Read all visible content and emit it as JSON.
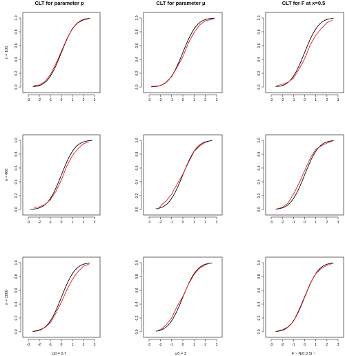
{
  "column_titles": [
    "CLT for parameter p",
    "CLT for parameter μ",
    "CLT for F at x=0.5"
  ],
  "row_labels": [
    "n = 100",
    "n = 400",
    "n = 1000"
  ],
  "bottom_labels": [
    "p0 = 0.7",
    "μ0 = 3",
    "F ~ N(0.0.5) ~"
  ],
  "colors": {
    "reference_cdf": "#000000",
    "empirical_cdf": "#e41a1c"
  },
  "chart_data": {
    "type": "line",
    "layout": "3x3 grid",
    "grid": false,
    "xticks": [
      -3,
      -2,
      -1,
      0,
      1,
      2,
      3
    ],
    "yticks": [
      "0.0",
      "0.2",
      "0.4",
      "0.6",
      "0.8",
      "1.0"
    ],
    "xlim": [
      -3,
      3
    ],
    "ylim": [
      0,
      1
    ],
    "panels": [
      {
        "row": 0,
        "col": 0,
        "xrange": [
          -2.6,
          2.6
        ],
        "series": [
          {
            "role": "normal-cdf",
            "mu": 0,
            "sigma": 1
          },
          {
            "role": "empirical-cdf",
            "points": [
              [
                -2.5,
                0.02
              ],
              [
                -2.0,
                0.03
              ],
              [
                -1.5,
                0.08
              ],
              [
                -1.0,
                0.18
              ],
              [
                -0.5,
                0.34
              ],
              [
                0.0,
                0.52
              ],
              [
                0.5,
                0.7
              ],
              [
                1.0,
                0.85
              ],
              [
                1.5,
                0.93
              ],
              [
                2.0,
                0.97
              ],
              [
                2.5,
                0.99
              ]
            ]
          }
        ]
      },
      {
        "row": 0,
        "col": 1,
        "xrange": [
          -2.8,
          2.8
        ],
        "series": [
          {
            "role": "normal-cdf",
            "mu": 0,
            "sigma": 1
          },
          {
            "role": "empirical-cdf",
            "points": [
              [
                -2.8,
                0.01
              ],
              [
                -2.0,
                0.02
              ],
              [
                -1.5,
                0.07
              ],
              [
                -1.0,
                0.15
              ],
              [
                -0.5,
                0.29
              ],
              [
                0.0,
                0.44
              ],
              [
                0.5,
                0.64
              ],
              [
                1.0,
                0.79
              ],
              [
                1.5,
                0.9
              ],
              [
                2.0,
                0.96
              ],
              [
                2.8,
                0.99
              ]
            ]
          }
        ]
      },
      {
        "row": 0,
        "col": 2,
        "xrange": [
          -2.6,
          2.6
        ],
        "series": [
          {
            "role": "normal-cdf",
            "mu": 0,
            "sigma": 1
          },
          {
            "role": "empirical-cdf",
            "points": [
              [
                -2.5,
                0.02
              ],
              [
                -2.0,
                0.04
              ],
              [
                -1.5,
                0.07
              ],
              [
                -1.0,
                0.13
              ],
              [
                -0.5,
                0.26
              ],
              [
                0.0,
                0.41
              ],
              [
                0.5,
                0.61
              ],
              [
                1.0,
                0.75
              ],
              [
                1.5,
                0.85
              ],
              [
                2.0,
                0.93
              ],
              [
                2.5,
                0.97
              ]
            ]
          }
        ]
      },
      {
        "row": 1,
        "col": 0,
        "xrange": [
          -2.8,
          2.8
        ],
        "series": [
          {
            "role": "normal-cdf",
            "mu": 0,
            "sigma": 1
          },
          {
            "role": "empirical-cdf",
            "points": [
              [
                -2.5,
                0.02
              ],
              [
                -2.0,
                0.04
              ],
              [
                -1.5,
                0.07
              ],
              [
                -1.0,
                0.14
              ],
              [
                -0.5,
                0.26
              ],
              [
                0.0,
                0.43
              ],
              [
                0.5,
                0.63
              ],
              [
                1.0,
                0.78
              ],
              [
                1.5,
                0.88
              ],
              [
                2.0,
                0.95
              ],
              [
                2.5,
                0.98
              ]
            ]
          }
        ]
      },
      {
        "row": 1,
        "col": 1,
        "xrange": [
          -2.4,
          2.6
        ],
        "series": [
          {
            "role": "normal-cdf",
            "mu": 0,
            "sigma": 1
          },
          {
            "role": "empirical-cdf",
            "points": [
              [
                -2.2,
                0.01
              ],
              [
                -1.8,
                0.08
              ],
              [
                -1.5,
                0.12
              ],
              [
                -1.0,
                0.22
              ],
              [
                -0.5,
                0.37
              ],
              [
                0.0,
                0.51
              ],
              [
                0.5,
                0.68
              ],
              [
                1.0,
                0.84
              ],
              [
                1.5,
                0.92
              ],
              [
                2.0,
                0.97
              ],
              [
                2.4,
                0.99
              ]
            ]
          }
        ]
      },
      {
        "row": 1,
        "col": 2,
        "xrange": [
          -2.6,
          2.6
        ],
        "series": [
          {
            "role": "normal-cdf",
            "mu": 0,
            "sigma": 1
          },
          {
            "role": "empirical-cdf",
            "points": [
              [
                -2.5,
                0.01
              ],
              [
                -2.0,
                0.03
              ],
              [
                -1.5,
                0.09
              ],
              [
                -1.0,
                0.22
              ],
              [
                -0.5,
                0.38
              ],
              [
                0.0,
                0.56
              ],
              [
                0.5,
                0.74
              ],
              [
                1.0,
                0.87
              ],
              [
                1.5,
                0.92
              ],
              [
                2.0,
                0.96
              ],
              [
                2.5,
                0.99
              ]
            ]
          }
        ]
      },
      {
        "row": 2,
        "col": 0,
        "xrange": [
          -2.6,
          2.6
        ],
        "series": [
          {
            "role": "normal-cdf",
            "mu": 0,
            "sigma": 1
          },
          {
            "role": "empirical-cdf",
            "points": [
              [
                -2.5,
                0.01
              ],
              [
                -2.0,
                0.03
              ],
              [
                -1.5,
                0.06
              ],
              [
                -1.0,
                0.13
              ],
              [
                -0.5,
                0.27
              ],
              [
                0.0,
                0.43
              ],
              [
                0.5,
                0.61
              ],
              [
                1.0,
                0.76
              ],
              [
                1.5,
                0.87
              ],
              [
                2.0,
                0.95
              ],
              [
                2.5,
                0.98
              ]
            ]
          }
        ]
      },
      {
        "row": 2,
        "col": 1,
        "xrange": [
          -2.4,
          2.6
        ],
        "series": [
          {
            "role": "normal-cdf",
            "mu": 0,
            "sigma": 1
          },
          {
            "role": "empirical-cdf",
            "points": [
              [
                -2.2,
                0.02
              ],
              [
                -1.8,
                0.05
              ],
              [
                -1.5,
                0.1
              ],
              [
                -1.0,
                0.2
              ],
              [
                -0.5,
                0.37
              ],
              [
                0.0,
                0.51
              ],
              [
                0.5,
                0.69
              ],
              [
                1.0,
                0.83
              ],
              [
                1.5,
                0.92
              ],
              [
                2.0,
                0.97
              ],
              [
                2.4,
                0.99
              ]
            ]
          }
        ]
      },
      {
        "row": 2,
        "col": 2,
        "xrange": [
          -2.6,
          2.6
        ],
        "series": [
          {
            "role": "normal-cdf",
            "mu": 0,
            "sigma": 1
          },
          {
            "role": "empirical-cdf",
            "points": [
              [
                -2.5,
                0.01
              ],
              [
                -2.0,
                0.03
              ],
              [
                -1.5,
                0.07
              ],
              [
                -1.0,
                0.15
              ],
              [
                -0.5,
                0.32
              ],
              [
                0.0,
                0.51
              ],
              [
                0.5,
                0.7
              ],
              [
                1.0,
                0.84
              ],
              [
                1.5,
                0.92
              ],
              [
                2.0,
                0.96
              ],
              [
                2.5,
                0.99
              ]
            ]
          }
        ]
      }
    ]
  }
}
